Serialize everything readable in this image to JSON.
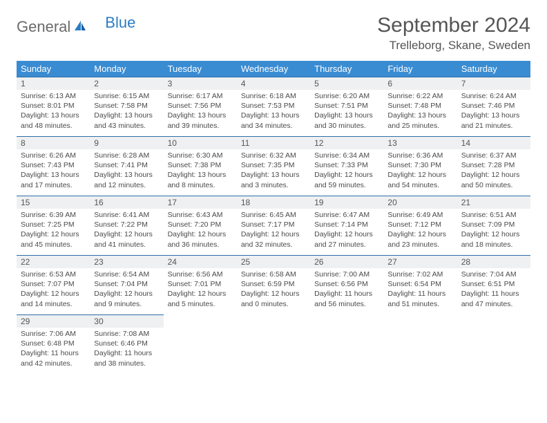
{
  "logo": {
    "general": "General",
    "blue": "Blue"
  },
  "title": "September 2024",
  "location": "Trelleborg, Skane, Sweden",
  "colors": {
    "header_bg": "#3a8cd2",
    "header_text": "#ffffff",
    "daynum_bg": "#eef0f1",
    "border": "#2e6ca8",
    "body_text": "#4a4a4a",
    "logo_blue": "#2b7cc4"
  },
  "day_names": [
    "Sunday",
    "Monday",
    "Tuesday",
    "Wednesday",
    "Thursday",
    "Friday",
    "Saturday"
  ],
  "weeks": [
    [
      {
        "n": "1",
        "sr": "Sunrise: 6:13 AM",
        "ss": "Sunset: 8:01 PM",
        "d1": "Daylight: 13 hours",
        "d2": "and 48 minutes."
      },
      {
        "n": "2",
        "sr": "Sunrise: 6:15 AM",
        "ss": "Sunset: 7:58 PM",
        "d1": "Daylight: 13 hours",
        "d2": "and 43 minutes."
      },
      {
        "n": "3",
        "sr": "Sunrise: 6:17 AM",
        "ss": "Sunset: 7:56 PM",
        "d1": "Daylight: 13 hours",
        "d2": "and 39 minutes."
      },
      {
        "n": "4",
        "sr": "Sunrise: 6:18 AM",
        "ss": "Sunset: 7:53 PM",
        "d1": "Daylight: 13 hours",
        "d2": "and 34 minutes."
      },
      {
        "n": "5",
        "sr": "Sunrise: 6:20 AM",
        "ss": "Sunset: 7:51 PM",
        "d1": "Daylight: 13 hours",
        "d2": "and 30 minutes."
      },
      {
        "n": "6",
        "sr": "Sunrise: 6:22 AM",
        "ss": "Sunset: 7:48 PM",
        "d1": "Daylight: 13 hours",
        "d2": "and 25 minutes."
      },
      {
        "n": "7",
        "sr": "Sunrise: 6:24 AM",
        "ss": "Sunset: 7:46 PM",
        "d1": "Daylight: 13 hours",
        "d2": "and 21 minutes."
      }
    ],
    [
      {
        "n": "8",
        "sr": "Sunrise: 6:26 AM",
        "ss": "Sunset: 7:43 PM",
        "d1": "Daylight: 13 hours",
        "d2": "and 17 minutes."
      },
      {
        "n": "9",
        "sr": "Sunrise: 6:28 AM",
        "ss": "Sunset: 7:41 PM",
        "d1": "Daylight: 13 hours",
        "d2": "and 12 minutes."
      },
      {
        "n": "10",
        "sr": "Sunrise: 6:30 AM",
        "ss": "Sunset: 7:38 PM",
        "d1": "Daylight: 13 hours",
        "d2": "and 8 minutes."
      },
      {
        "n": "11",
        "sr": "Sunrise: 6:32 AM",
        "ss": "Sunset: 7:35 PM",
        "d1": "Daylight: 13 hours",
        "d2": "and 3 minutes."
      },
      {
        "n": "12",
        "sr": "Sunrise: 6:34 AM",
        "ss": "Sunset: 7:33 PM",
        "d1": "Daylight: 12 hours",
        "d2": "and 59 minutes."
      },
      {
        "n": "13",
        "sr": "Sunrise: 6:36 AM",
        "ss": "Sunset: 7:30 PM",
        "d1": "Daylight: 12 hours",
        "d2": "and 54 minutes."
      },
      {
        "n": "14",
        "sr": "Sunrise: 6:37 AM",
        "ss": "Sunset: 7:28 PM",
        "d1": "Daylight: 12 hours",
        "d2": "and 50 minutes."
      }
    ],
    [
      {
        "n": "15",
        "sr": "Sunrise: 6:39 AM",
        "ss": "Sunset: 7:25 PM",
        "d1": "Daylight: 12 hours",
        "d2": "and 45 minutes."
      },
      {
        "n": "16",
        "sr": "Sunrise: 6:41 AM",
        "ss": "Sunset: 7:22 PM",
        "d1": "Daylight: 12 hours",
        "d2": "and 41 minutes."
      },
      {
        "n": "17",
        "sr": "Sunrise: 6:43 AM",
        "ss": "Sunset: 7:20 PM",
        "d1": "Daylight: 12 hours",
        "d2": "and 36 minutes."
      },
      {
        "n": "18",
        "sr": "Sunrise: 6:45 AM",
        "ss": "Sunset: 7:17 PM",
        "d1": "Daylight: 12 hours",
        "d2": "and 32 minutes."
      },
      {
        "n": "19",
        "sr": "Sunrise: 6:47 AM",
        "ss": "Sunset: 7:14 PM",
        "d1": "Daylight: 12 hours",
        "d2": "and 27 minutes."
      },
      {
        "n": "20",
        "sr": "Sunrise: 6:49 AM",
        "ss": "Sunset: 7:12 PM",
        "d1": "Daylight: 12 hours",
        "d2": "and 23 minutes."
      },
      {
        "n": "21",
        "sr": "Sunrise: 6:51 AM",
        "ss": "Sunset: 7:09 PM",
        "d1": "Daylight: 12 hours",
        "d2": "and 18 minutes."
      }
    ],
    [
      {
        "n": "22",
        "sr": "Sunrise: 6:53 AM",
        "ss": "Sunset: 7:07 PM",
        "d1": "Daylight: 12 hours",
        "d2": "and 14 minutes."
      },
      {
        "n": "23",
        "sr": "Sunrise: 6:54 AM",
        "ss": "Sunset: 7:04 PM",
        "d1": "Daylight: 12 hours",
        "d2": "and 9 minutes."
      },
      {
        "n": "24",
        "sr": "Sunrise: 6:56 AM",
        "ss": "Sunset: 7:01 PM",
        "d1": "Daylight: 12 hours",
        "d2": "and 5 minutes."
      },
      {
        "n": "25",
        "sr": "Sunrise: 6:58 AM",
        "ss": "Sunset: 6:59 PM",
        "d1": "Daylight: 12 hours",
        "d2": "and 0 minutes."
      },
      {
        "n": "26",
        "sr": "Sunrise: 7:00 AM",
        "ss": "Sunset: 6:56 PM",
        "d1": "Daylight: 11 hours",
        "d2": "and 56 minutes."
      },
      {
        "n": "27",
        "sr": "Sunrise: 7:02 AM",
        "ss": "Sunset: 6:54 PM",
        "d1": "Daylight: 11 hours",
        "d2": "and 51 minutes."
      },
      {
        "n": "28",
        "sr": "Sunrise: 7:04 AM",
        "ss": "Sunset: 6:51 PM",
        "d1": "Daylight: 11 hours",
        "d2": "and 47 minutes."
      }
    ],
    [
      {
        "n": "29",
        "sr": "Sunrise: 7:06 AM",
        "ss": "Sunset: 6:48 PM",
        "d1": "Daylight: 11 hours",
        "d2": "and 42 minutes."
      },
      {
        "n": "30",
        "sr": "Sunrise: 7:08 AM",
        "ss": "Sunset: 6:46 PM",
        "d1": "Daylight: 11 hours",
        "d2": "and 38 minutes."
      },
      null,
      null,
      null,
      null,
      null
    ]
  ]
}
